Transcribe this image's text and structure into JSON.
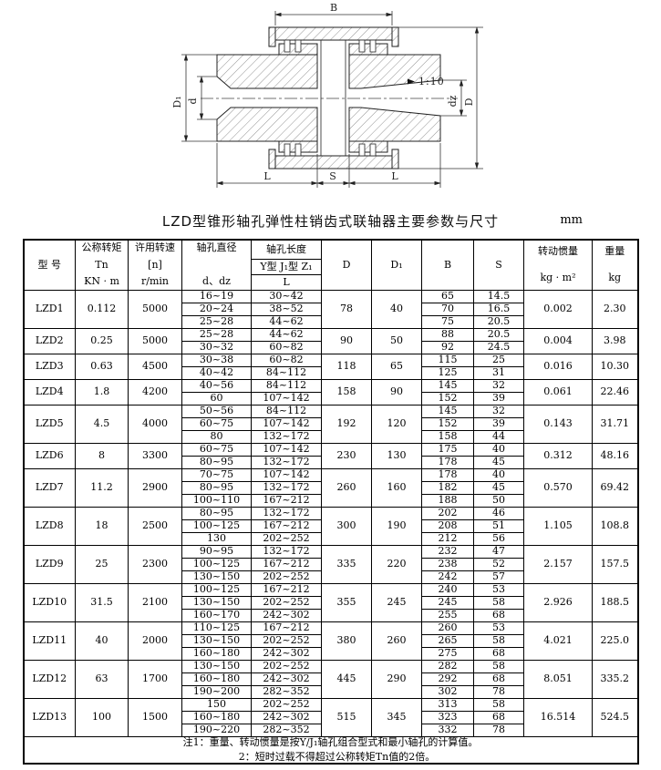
{
  "page": {
    "title": "LZD型锥形轴孔弹性柱销齿式联轴器主要参数与尺寸",
    "unit": "mm"
  },
  "drawing": {
    "labels": {
      "B": "B",
      "D": "D",
      "D1": "D₁",
      "d": "d",
      "dz": "dz",
      "L_left": "L",
      "S": "S",
      "L_right": "L",
      "taper": "1:10"
    }
  },
  "table": {
    "header": {
      "model": "型  号",
      "torque_l1": "公称转矩",
      "torque_l2": "Tn",
      "torque_l3": "KN · m",
      "speed_l1": "许用转速",
      "speed_l2": "[n]",
      "speed_l3": "r/min",
      "bore_dia_l1": "轴孔直径",
      "bore_dia_l2": "d、dz",
      "bore_len_title": "轴孔长度",
      "bore_len_types": "Y型 J₁型 Z₁",
      "bore_len_L": "L",
      "D": "D",
      "D1": "D₁",
      "B": "B",
      "S": "S",
      "inertia_l1": "转动惯量",
      "inertia_l2": "kg · m²",
      "weight_l1": "重量",
      "weight_l2": "kg"
    },
    "rows": [
      {
        "model": "LZD1",
        "torque": "0.112",
        "speed": "5000",
        "D": "78",
        "D1": "40",
        "inertia": "0.002",
        "weight": "2.30",
        "subs": [
          [
            "16~19",
            "30~42",
            "65",
            "14.5"
          ],
          [
            "20~24",
            "38~52",
            "70",
            "16.5"
          ],
          [
            "25~28",
            "44~62",
            "75",
            "20.5"
          ]
        ]
      },
      {
        "model": "LZD2",
        "torque": "0.25",
        "speed": "5000",
        "D": "90",
        "D1": "50",
        "inertia": "0.004",
        "weight": "3.98",
        "subs": [
          [
            "25~28",
            "44~62",
            "88",
            "20.5"
          ],
          [
            "30~32",
            "60~82",
            "92",
            "24.5"
          ]
        ]
      },
      {
        "model": "LZD3",
        "torque": "0.63",
        "speed": "4500",
        "D": "118",
        "D1": "65",
        "inertia": "0.016",
        "weight": "10.30",
        "subs": [
          [
            "30~38",
            "60~82",
            "115",
            "25"
          ],
          [
            "40~42",
            "84~112",
            "125",
            "31"
          ]
        ]
      },
      {
        "model": "LZD4",
        "torque": "1.8",
        "speed": "4200",
        "D": "158",
        "D1": "90",
        "inertia": "0.061",
        "weight": "22.46",
        "subs": [
          [
            "40~56",
            "84~112",
            "145",
            "32"
          ],
          [
            "60",
            "107~142",
            "152",
            "39"
          ]
        ]
      },
      {
        "model": "LZD5",
        "torque": "4.5",
        "speed": "4000",
        "D": "192",
        "D1": "120",
        "inertia": "0.143",
        "weight": "31.71",
        "subs": [
          [
            "50~56",
            "84~112",
            "145",
            "32"
          ],
          [
            "60~75",
            "107~142",
            "152",
            "39"
          ],
          [
            "80",
            "132~172",
            "158",
            "44"
          ]
        ]
      },
      {
        "model": "LZD6",
        "torque": "8",
        "speed": "3300",
        "D": "230",
        "D1": "130",
        "inertia": "0.312",
        "weight": "48.16",
        "subs": [
          [
            "60~75",
            "107~142",
            "175",
            "40"
          ],
          [
            "80~95",
            "132~172",
            "178",
            "45"
          ]
        ]
      },
      {
        "model": "LZD7",
        "torque": "11.2",
        "speed": "2900",
        "D": "260",
        "D1": "160",
        "inertia": "0.570",
        "weight": "69.42",
        "subs": [
          [
            "70~75",
            "107~142",
            "178",
            "40"
          ],
          [
            "80~95",
            "132~172",
            "182",
            "45"
          ],
          [
            "100~110",
            "167~212",
            "188",
            "50"
          ]
        ]
      },
      {
        "model": "LZD8",
        "torque": "18",
        "speed": "2500",
        "D": "300",
        "D1": "190",
        "inertia": "1.105",
        "weight": "108.8",
        "subs": [
          [
            "80~95",
            "132~172",
            "202",
            "46"
          ],
          [
            "100~125",
            "167~212",
            "208",
            "51"
          ],
          [
            "130",
            "202~252",
            "212",
            "56"
          ]
        ]
      },
      {
        "model": "LZD9",
        "torque": "25",
        "speed": "2300",
        "D": "335",
        "D1": "220",
        "inertia": "2.157",
        "weight": "157.5",
        "subs": [
          [
            "90~95",
            "132~172",
            "232",
            "47"
          ],
          [
            "100~125",
            "167~212",
            "238",
            "52"
          ],
          [
            "130~150",
            "202~252",
            "242",
            "57"
          ]
        ]
      },
      {
        "model": "LZD10",
        "torque": "31.5",
        "speed": "2100",
        "D": "355",
        "D1": "245",
        "inertia": "2.926",
        "weight": "188.5",
        "subs": [
          [
            "100~125",
            "167~212",
            "240",
            "53"
          ],
          [
            "130~150",
            "202~252",
            "245",
            "58"
          ],
          [
            "160~170",
            "242~302",
            "255",
            "68"
          ]
        ]
      },
      {
        "model": "LZD11",
        "torque": "40",
        "speed": "2000",
        "D": "380",
        "D1": "260",
        "inertia": "4.021",
        "weight": "225.0",
        "subs": [
          [
            "110~125",
            "167~212",
            "260",
            "53"
          ],
          [
            "130~150",
            "202~252",
            "265",
            "58"
          ],
          [
            "160~180",
            "242~302",
            "275",
            "68"
          ]
        ]
      },
      {
        "model": "LZD12",
        "torque": "63",
        "speed": "1700",
        "D": "445",
        "D1": "290",
        "inertia": "8.051",
        "weight": "335.2",
        "subs": [
          [
            "130~150",
            "202~252",
            "282",
            "58"
          ],
          [
            "160~180",
            "242~302",
            "292",
            "68"
          ],
          [
            "190~200",
            "282~352",
            "302",
            "78"
          ]
        ]
      },
      {
        "model": "LZD13",
        "torque": "100",
        "speed": "1500",
        "D": "515",
        "D1": "345",
        "inertia": "16.514",
        "weight": "524.5",
        "subs": [
          [
            "150",
            "202~252",
            "313",
            "58"
          ],
          [
            "160~180",
            "242~302",
            "323",
            "68"
          ],
          [
            "190~220",
            "282~352",
            "332",
            "78"
          ]
        ]
      }
    ]
  },
  "notes": [
    "注1：重量、转动惯量是按Y/J₁轴孔组合型式和最小轴孔的计算值。",
    "2：短时过载不得超过公称转矩Tn值的2倍。"
  ]
}
